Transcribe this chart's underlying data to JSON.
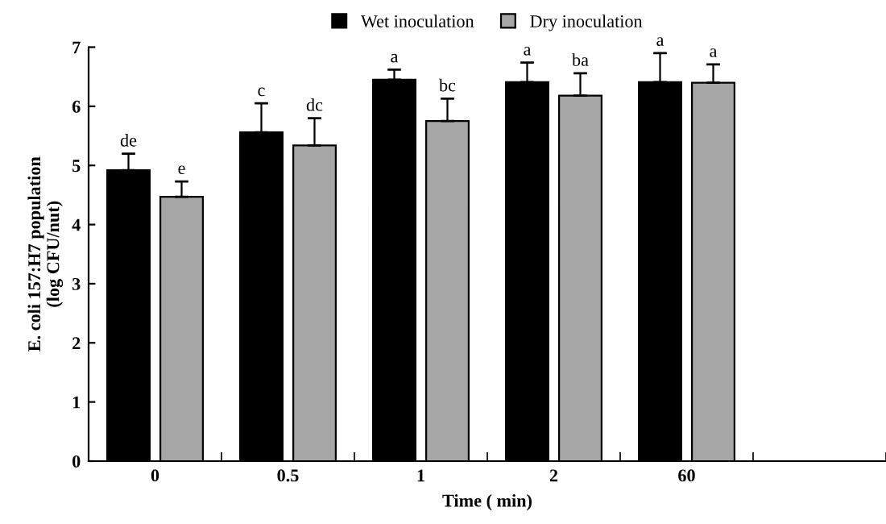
{
  "chart_data": {
    "type": "bar",
    "xlabel": "Time ( min)",
    "ylabel": "E. coli 157:H7 population\n(log CFU/nut)",
    "categories": [
      "0",
      "0.5",
      "1",
      "2",
      "60",
      null
    ],
    "series": [
      {
        "name": "Wet inoculation",
        "color": "#000000",
        "values": [
          4.92,
          5.56,
          6.45,
          6.41,
          6.41,
          null
        ],
        "errors": [
          0.28,
          0.49,
          0.17,
          0.33,
          0.49,
          null
        ],
        "value_labels": [
          "de",
          "c",
          "a",
          "a",
          "a",
          null
        ]
      },
      {
        "name": "Dry inoculation",
        "color": "#a6a6a6",
        "values": [
          4.47,
          5.34,
          5.75,
          6.18,
          6.4,
          null
        ],
        "errors": [
          0.26,
          0.46,
          0.38,
          0.38,
          0.31,
          null
        ],
        "value_labels": [
          "e",
          "dc",
          "bc",
          "ba",
          "a",
          null
        ]
      }
    ],
    "ylim": [
      0,
      7
    ],
    "yticks": [
      0,
      1,
      2,
      3,
      4,
      5,
      6,
      7
    ],
    "grid": false,
    "legend": "top"
  }
}
